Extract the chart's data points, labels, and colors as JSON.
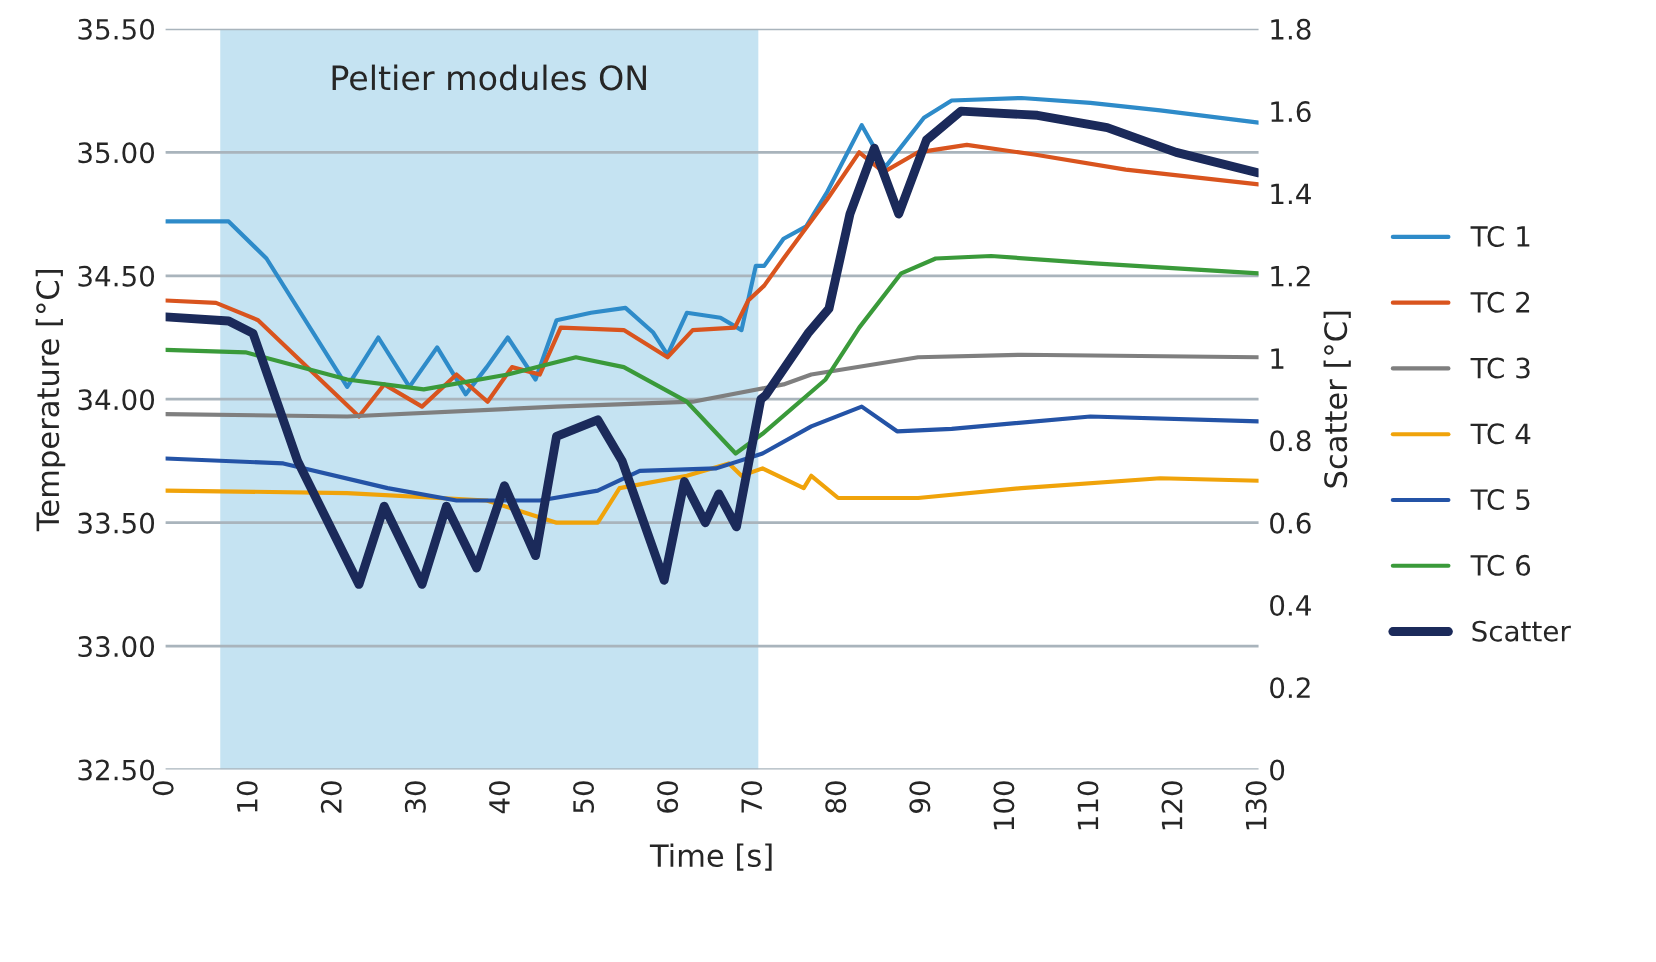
{
  "chart_data": {
    "type": "line",
    "xlabel": "Time [s]",
    "ylabel": "Temperature [°C]",
    "y2label": "Scatter [°C]",
    "xlim": [
      0,
      130
    ],
    "xticks": [
      0,
      10,
      20,
      30,
      40,
      50,
      60,
      70,
      80,
      90,
      100,
      110,
      120,
      130
    ],
    "ylim": [
      32.5,
      35.5
    ],
    "yticks": [
      {
        "value": 32.5,
        "label": "32.50"
      },
      {
        "value": 33.0,
        "label": "33.00"
      },
      {
        "value": 33.5,
        "label": "33.50"
      },
      {
        "value": 34.0,
        "label": "34.00"
      },
      {
        "value": 34.5,
        "label": "34.50"
      },
      {
        "value": 35.0,
        "label": "35.00"
      },
      {
        "value": 35.5,
        "label": "35.50"
      }
    ],
    "y2lim": [
      0,
      1.8
    ],
    "y2ticks": [
      0,
      0.2,
      0.4,
      0.6,
      0.8,
      1,
      1.2,
      1.4,
      1.6,
      1.8
    ],
    "grid": "y",
    "legend": "right",
    "marker": "none",
    "line_style": "solid",
    "bands": [
      {
        "axis": "x",
        "from": 6.5,
        "to": 70.5,
        "label": "Peltier modules ON",
        "color": "#c5e3f2"
      }
    ],
    "series": [
      {
        "name": "TC 1",
        "color": "#2e8bc9",
        "x": [
          0,
          7.5,
          12,
          21.6,
          25.3,
          29,
          32.3,
          35.7,
          38.2,
          40.7,
          44,
          46.5,
          50.6,
          54.7,
          58,
          59.7,
          62,
          66,
          68.5,
          70.2,
          71.2,
          73.5,
          76.2,
          78.7,
          82.8,
          85.6,
          90.2,
          93.5,
          101.8,
          110,
          118.3,
          130
        ],
        "values": [
          34.72,
          34.72,
          34.57,
          34.05,
          34.25,
          34.05,
          34.21,
          34.02,
          34.13,
          34.25,
          34.08,
          34.32,
          34.35,
          34.37,
          34.27,
          34.18,
          34.35,
          34.33,
          34.28,
          34.54,
          34.54,
          34.65,
          34.7,
          34.84,
          35.11,
          34.94,
          35.14,
          35.21,
          35.22,
          35.2,
          35.17,
          35.12
        ]
      },
      {
        "name": "TC 2",
        "color": "#d9541e",
        "x": [
          0,
          6,
          11,
          23,
          26,
          30.5,
          34.6,
          38.3,
          41.2,
          44.5,
          47,
          54.5,
          59.7,
          62.7,
          67.7,
          69.3,
          71.2,
          73.5,
          78.7,
          82.5,
          85.4,
          89.5,
          95.3,
          103.5,
          114.2,
          130
        ],
        "values": [
          34.4,
          34.39,
          34.32,
          33.93,
          34.06,
          33.97,
          34.1,
          33.99,
          34.13,
          34.1,
          34.29,
          34.28,
          34.17,
          34.28,
          34.29,
          34.4,
          34.46,
          34.57,
          34.81,
          35.0,
          34.92,
          35.0,
          35.03,
          34.99,
          34.93,
          34.87
        ]
      },
      {
        "name": "TC 3",
        "color": "#7f7f7f",
        "x": [
          0,
          21.6,
          46.5,
          62.7,
          73.5,
          76.8,
          89.5,
          101.8,
          130
        ],
        "values": [
          33.94,
          33.93,
          33.97,
          33.99,
          34.06,
          34.1,
          34.17,
          34.18,
          34.17
        ]
      },
      {
        "name": "TC 4",
        "color": "#f0a30a",
        "x": [
          0,
          21.6,
          38.2,
          46.5,
          51.4,
          54,
          62,
          67,
          68.5,
          71,
          75.9,
          76.8,
          80,
          89.5,
          101.8,
          118.3,
          130
        ],
        "values": [
          33.63,
          33.62,
          33.59,
          33.5,
          33.5,
          33.64,
          33.69,
          33.74,
          33.69,
          33.72,
          33.64,
          33.69,
          33.6,
          33.6,
          33.64,
          33.68,
          33.67
        ]
      },
      {
        "name": "TC 5",
        "color": "#2453a6",
        "x": [
          0,
          14,
          26.4,
          34.6,
          44.5,
          51.4,
          56.4,
          65.5,
          71,
          76.8,
          82.8,
          87,
          93.5,
          110,
          130
        ],
        "values": [
          33.76,
          33.74,
          33.64,
          33.59,
          33.59,
          33.63,
          33.71,
          33.72,
          33.78,
          33.89,
          33.97,
          33.87,
          33.88,
          33.93,
          33.91
        ]
      },
      {
        "name": "TC 6",
        "color": "#3a9a3a",
        "x": [
          0,
          9.5,
          21.6,
          30.7,
          40.7,
          48.8,
          54.5,
          62,
          67.8,
          71,
          78.5,
          82.5,
          87.5,
          91.6,
          98.2,
          110.5,
          130
        ],
        "values": [
          34.2,
          34.19,
          34.08,
          34.04,
          34.1,
          34.17,
          34.13,
          33.99,
          33.78,
          33.86,
          34.08,
          34.29,
          34.51,
          34.57,
          34.58,
          34.55,
          34.51
        ]
      },
      {
        "name": "Scatter",
        "color": "#1b2a5a",
        "axis": "y2",
        "x": [
          0,
          7.5,
          10.4,
          15.7,
          23,
          26,
          30.5,
          33.4,
          37,
          40.3,
          44,
          46.5,
          51.4,
          54.3,
          59.3,
          61.7,
          64.2,
          65.8,
          67.9,
          70.8,
          71.4,
          76.4,
          78.9,
          81.4,
          84.3,
          87.2,
          90.5,
          94.6,
          103.7,
          112,
          120.2,
          130
        ],
        "values": [
          1.1,
          1.09,
          1.06,
          0.75,
          0.45,
          0.64,
          0.45,
          0.64,
          0.49,
          0.69,
          0.52,
          0.81,
          0.85,
          0.75,
          0.46,
          0.7,
          0.6,
          0.67,
          0.59,
          0.9,
          0.91,
          1.06,
          1.12,
          1.35,
          1.51,
          1.35,
          1.53,
          1.6,
          1.59,
          1.56,
          1.5,
          1.45
        ]
      }
    ]
  }
}
